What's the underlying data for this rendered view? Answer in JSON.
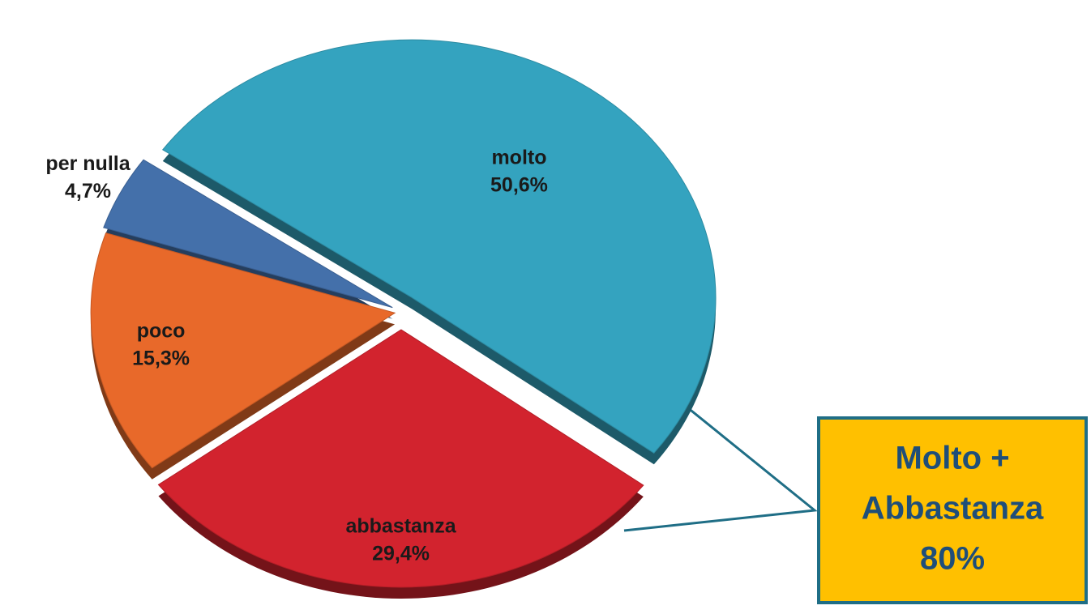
{
  "chart_data": {
    "type": "pie",
    "categories": [
      "molto",
      "abbastanza",
      "poco",
      "per nulla"
    ],
    "values": [
      50.6,
      29.4,
      15.3,
      4.7
    ],
    "value_labels": [
      "50,6%",
      "29,4%",
      "15,3%",
      "4,7%"
    ],
    "colors": [
      "#34a3bf",
      "#d2232e",
      "#e8692a",
      "#4470aa"
    ],
    "annotation": {
      "lines": [
        "Molto +",
        "Abbastanza",
        "80%"
      ]
    }
  }
}
